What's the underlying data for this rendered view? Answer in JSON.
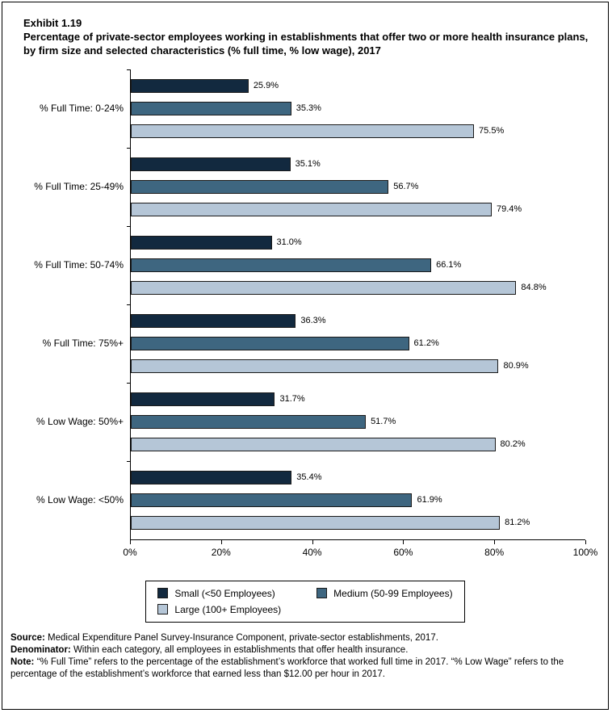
{
  "header": {
    "exhibit": "Exhibit 1.19",
    "title": "Percentage of private-sector employees working in establishments that offer two or more health insurance plans, by firm size and selected characteristics (% full time, % low wage), 2017"
  },
  "chart_data": {
    "type": "bar",
    "orientation": "horizontal",
    "title": "Percentage of private-sector employees working in establishments that offer two or more health insurance plans, by firm size and selected characteristics (% full time, % low wage), 2017",
    "categories": [
      "% Full Time: 0-24%",
      "% Full Time: 25-49%",
      "% Full Time: 50-74%",
      "% Full Time: 75%+",
      "% Low Wage: 50%+",
      "% Low Wage: <50%"
    ],
    "series": [
      {
        "name": "Small (<50 Employees)",
        "color": "#12293f",
        "values": [
          25.9,
          35.1,
          31.0,
          36.3,
          31.7,
          35.4
        ]
      },
      {
        "name": "Medium (50-99 Employees)",
        "color": "#3e6680",
        "values": [
          35.3,
          56.7,
          66.1,
          61.2,
          51.7,
          61.9
        ]
      },
      {
        "name": "Large (100+ Employees)",
        "color": "#b5c6d7",
        "values": [
          75.5,
          79.4,
          84.8,
          80.9,
          80.2,
          81.2
        ]
      }
    ],
    "xlim": [
      0,
      100
    ],
    "x_ticks": [
      "0%",
      "20%",
      "40%",
      "60%",
      "80%",
      "100%"
    ],
    "value_suffix": "%",
    "grid": "off",
    "legend_position": "bottom"
  },
  "footnotes": {
    "source_label": "Source:",
    "source_text": " Medical Expenditure Panel Survey-Insurance Component, private-sector establishments, 2017.",
    "denominator_label": "Denominator:",
    "denominator_text": " Within each category, all employees in establishments that offer health insurance.",
    "note_label": "Note:",
    "note_text": " “% Full Time” refers to the percentage of the establishment’s workforce that worked full time in 2017. “% Low Wage” refers to the percentage of the establishment’s workforce that earned less than $12.00 per hour in 2017."
  }
}
